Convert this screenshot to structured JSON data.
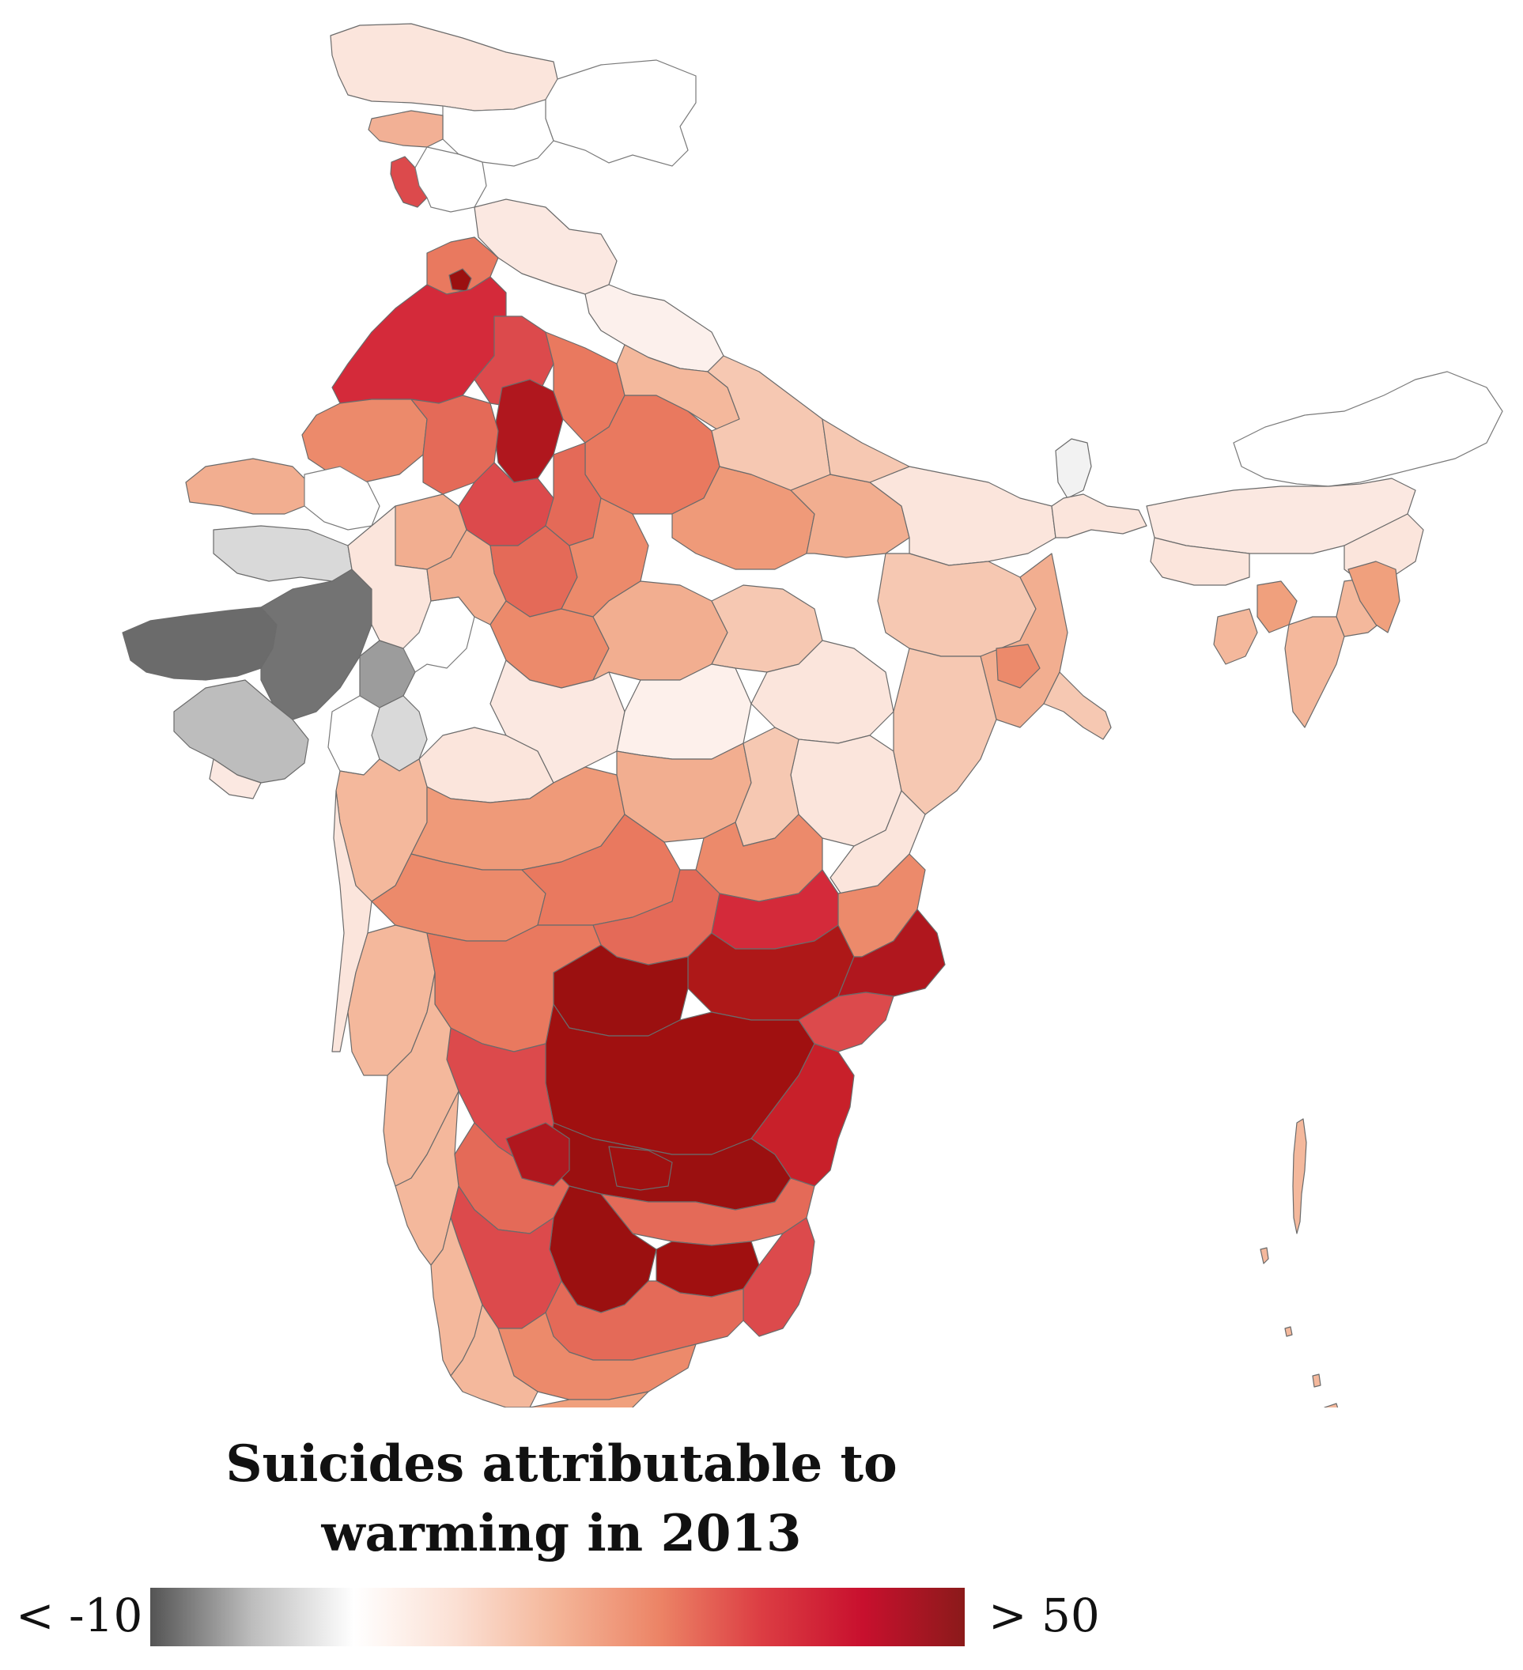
{
  "map": {
    "subject": "India districts",
    "colors": {
      "very_negative": "#666666",
      "negative": "#9c9c9c",
      "slightly_negative": "#d9d9d9",
      "neutral": "#ffffff",
      "pale": "#fbe5dc",
      "light": "#f6c8b2",
      "medium": "#f0a07d",
      "medium_strong": "#e9795f",
      "strong": "#dc4a4c",
      "very_strong": "#c8102e",
      "extreme": "#9b1010",
      "no_data_outline": "#7a7a7a"
    }
  },
  "legend": {
    "title_line1": "Suicides attributable to",
    "title_line2": "warming in 2013",
    "min_label": "< -10",
    "max_label": "> 50",
    "gradient_stops": [
      "#545454",
      "#bdbdbd",
      "#ffffff",
      "#fbe0d4",
      "#f4b598",
      "#ec8466",
      "#dc3d43",
      "#c8102e",
      "#8b1a1a"
    ],
    "range": [
      -10,
      50
    ]
  }
}
